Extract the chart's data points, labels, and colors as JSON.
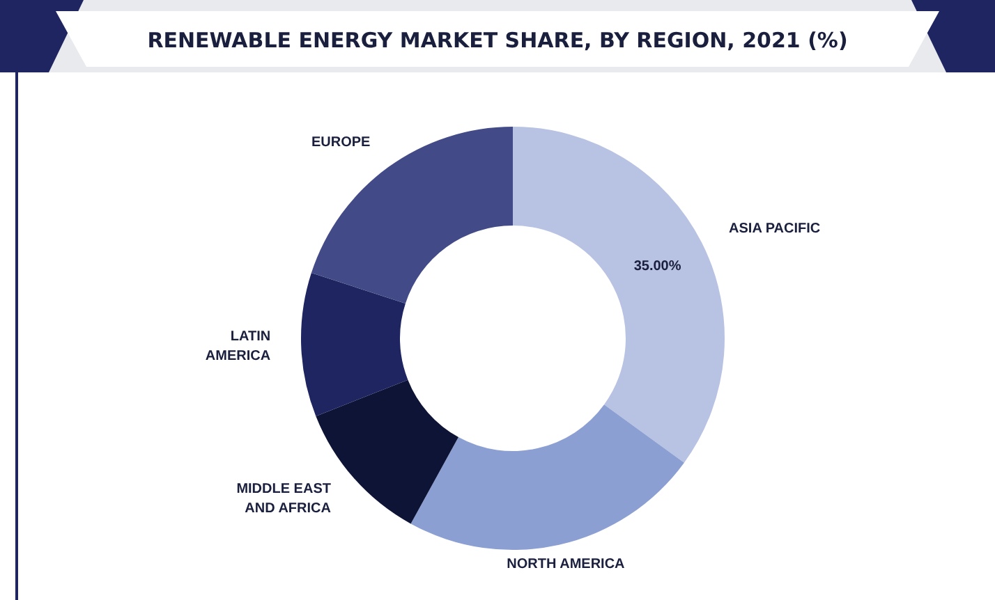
{
  "chart_data": {
    "type": "donut",
    "title": "RENEWABLE ENERGY MARKET SHARE, BY REGION, 2021 (%)",
    "categories": [
      "ASIA PACIFIC",
      "NORTH AMERICA",
      "MIDDLE EAST AND AFRICA",
      "LATIN AMERICA",
      "EUROPE"
    ],
    "values": [
      35,
      23,
      11,
      11,
      20
    ],
    "colors": [
      "#b8c2e3",
      "#8b9fd3",
      "#0d1436",
      "#1e2561",
      "#424b87"
    ],
    "value_labels": [
      "35.00%",
      null,
      null,
      null,
      null
    ]
  }
}
